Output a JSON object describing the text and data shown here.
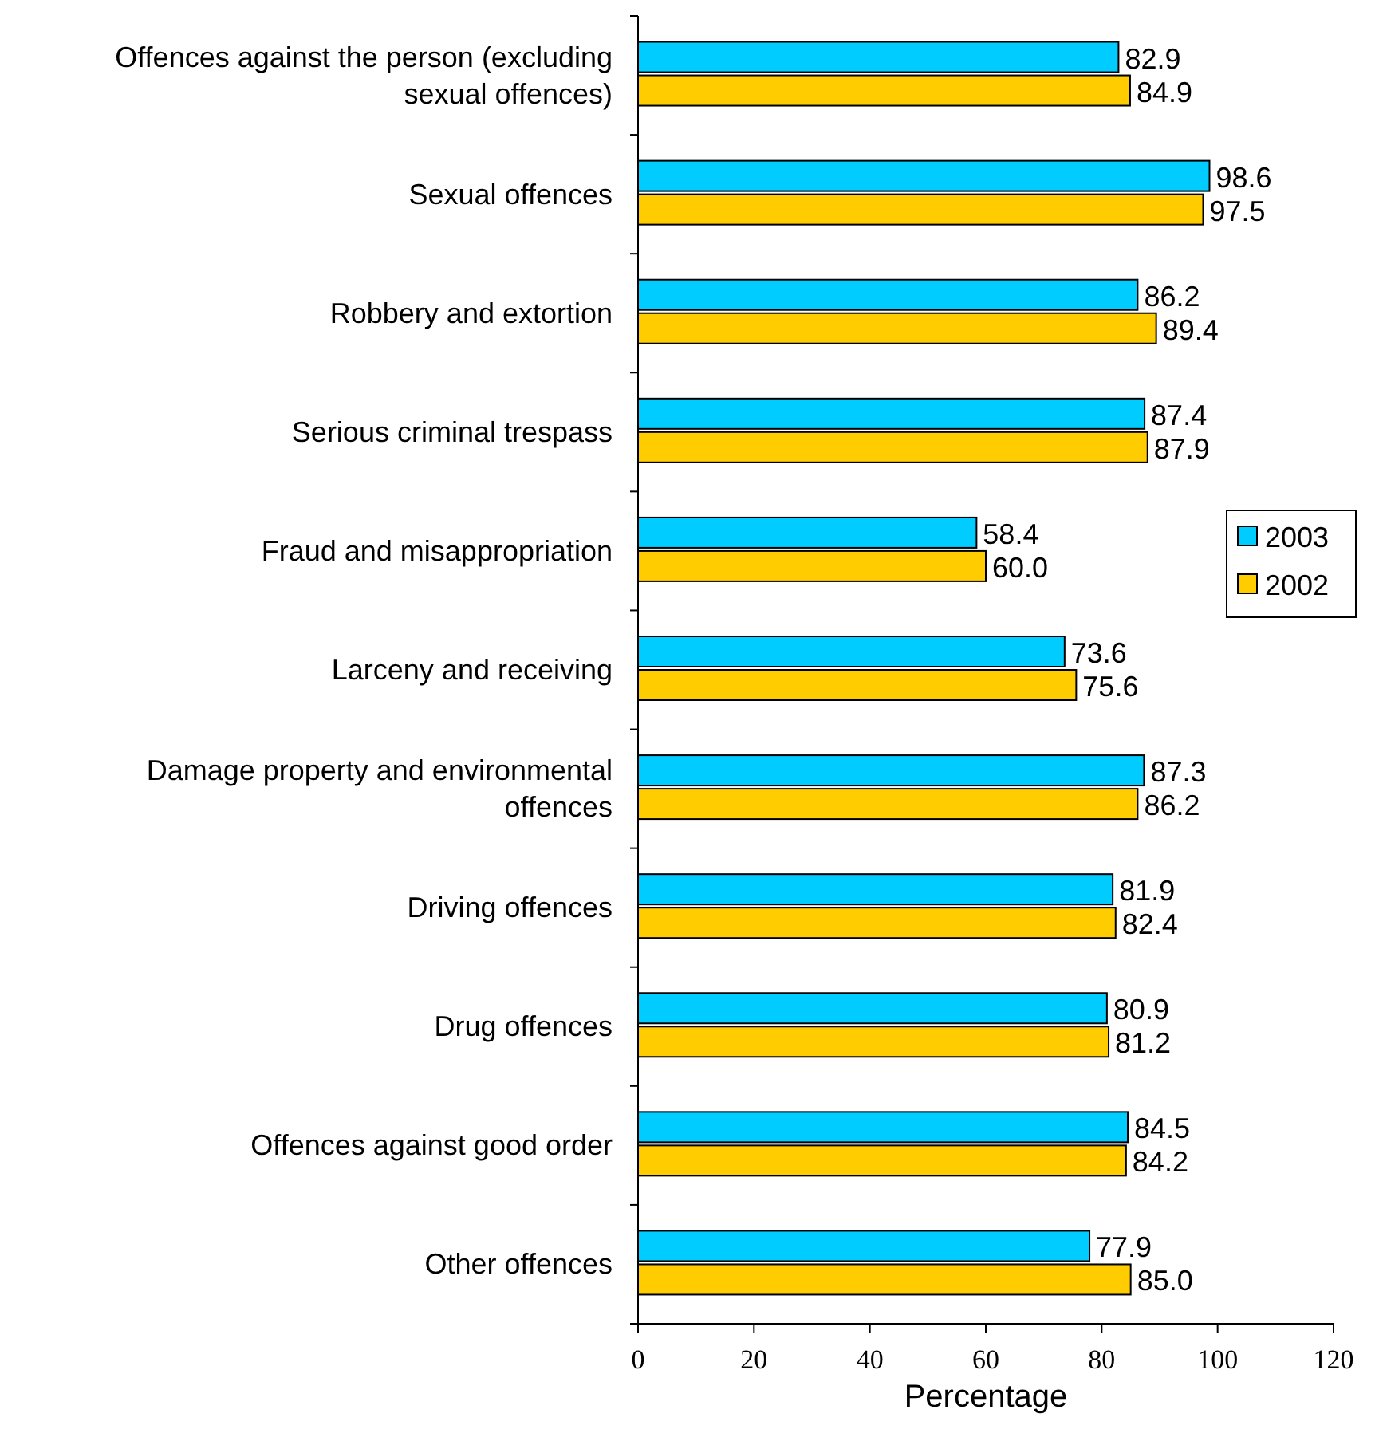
{
  "chart_data": {
    "type": "bar",
    "orientation": "horizontal",
    "xlabel": "Percentage",
    "categories": [
      "Offences against the person (excluding sexual offences)",
      "Sexual offences",
      "Robbery and extortion",
      "Serious criminal trespass",
      "Fraud and misappropriation",
      "Larceny and receiving",
      "Damage property and environmental offences",
      "Driving offences",
      "Drug offences",
      "Offences against good order",
      "Other offences"
    ],
    "series": [
      {
        "name": "2003",
        "color": "#00ccff",
        "values": [
          82.9,
          98.6,
          86.2,
          87.4,
          58.4,
          73.6,
          87.3,
          81.9,
          80.9,
          84.5,
          77.9
        ],
        "value_labels": [
          "82.9",
          "98.6",
          "86.2",
          "87.4",
          "58.4",
          "73.6",
          "87.3",
          "81.9",
          "80.9",
          "84.5",
          "77.9"
        ]
      },
      {
        "name": "2002",
        "color": "#ffcc00",
        "values": [
          84.9,
          97.5,
          89.4,
          87.9,
          60,
          75.6,
          86.2,
          82.4,
          81.2,
          84.2,
          85
        ],
        "value_labels": [
          "84.9",
          "97.5",
          "89.4",
          "87.9",
          "60.0",
          "75.6",
          "86.2",
          "82.4",
          "81.2",
          "84.2",
          "85.0"
        ]
      }
    ],
    "xlim": [
      0,
      120
    ],
    "xticks": [
      0,
      20,
      40,
      60,
      80,
      100,
      120
    ],
    "legend": "right",
    "grid": false
  }
}
